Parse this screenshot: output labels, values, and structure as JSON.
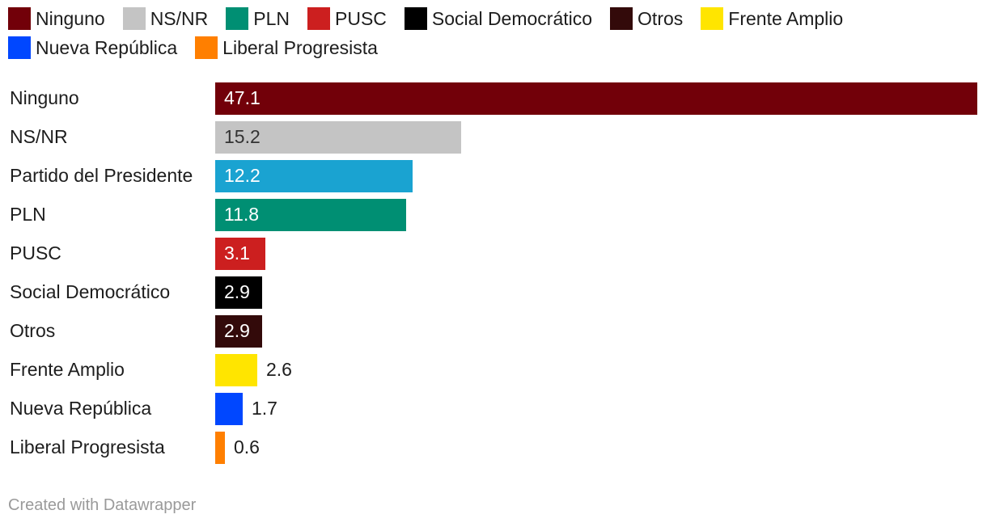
{
  "legend": [
    {
      "label": "Ninguno",
      "color": "#720009"
    },
    {
      "label": "NS/NR",
      "color": "#c4c4c4"
    },
    {
      "label": "PLN",
      "color": "#008f73"
    },
    {
      "label": "PUSC",
      "color": "#cc1f1f"
    },
    {
      "label": "Social Democrático",
      "color": "#000000"
    },
    {
      "label": "Otros",
      "color": "#330a0a"
    },
    {
      "label": "Frente Amplio",
      "color": "#ffe500"
    },
    {
      "label": "Nueva República",
      "color": "#0047ff"
    },
    {
      "label": "Liberal Progresista",
      "color": "#ff7f00"
    }
  ],
  "chart_data": {
    "type": "bar",
    "orientation": "horizontal",
    "categories": [
      "Ninguno",
      "NS/NR",
      "Partido del Presidente",
      "PLN",
      "PUSC",
      "Social Democrático",
      "Otros",
      "Frente Amplio",
      "Nueva República",
      "Liberal Progresista"
    ],
    "values": [
      47.1,
      15.2,
      12.2,
      11.8,
      3.1,
      2.9,
      2.9,
      2.6,
      1.7,
      0.6
    ],
    "value_labels": [
      "47.1",
      "15.2",
      "12.2",
      "11.8",
      "3.1",
      "2.9",
      "2.9",
      "2.6",
      "1.7",
      "0.6"
    ],
    "colors": [
      "#720009",
      "#c4c4c4",
      "#1aa3d1",
      "#008f73",
      "#cc1f1f",
      "#000000",
      "#330a0a",
      "#ffe500",
      "#0047ff",
      "#ff7f00"
    ],
    "label_color": [
      "#ffffff",
      "#333333",
      "#ffffff",
      "#ffffff",
      "#ffffff",
      "#ffffff",
      "#ffffff",
      "#1d1d1d",
      "#1d1d1d",
      "#1d1d1d"
    ],
    "label_inside": [
      true,
      true,
      true,
      true,
      true,
      true,
      true,
      false,
      false,
      false
    ],
    "xlim": [
      0,
      47.1
    ],
    "grid": false,
    "legend_position": "top"
  },
  "footer": "Created with Datawrapper"
}
